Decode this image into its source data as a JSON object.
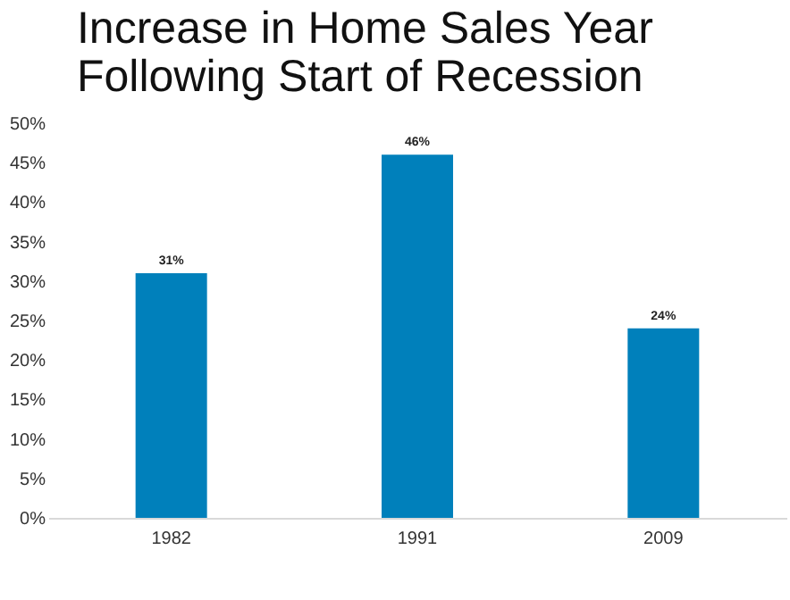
{
  "chart_data": {
    "type": "bar",
    "title": "Increase in Home Sales Year\nFollowing Start of Recession",
    "categories": [
      "1982",
      "1991",
      "2009"
    ],
    "values": [
      31,
      46,
      24
    ],
    "color": "#0080bb",
    "value_labels": [
      "31%",
      "46%",
      "24%"
    ],
    "ylim": [
      0,
      50
    ],
    "yticks": [
      {
        "value": 0,
        "label": "0%"
      },
      {
        "value": 5,
        "label": "5%"
      },
      {
        "value": 10,
        "label": "10%"
      },
      {
        "value": 15,
        "label": "15%"
      },
      {
        "value": 20,
        "label": "20%"
      },
      {
        "value": 25,
        "label": "25%"
      },
      {
        "value": 30,
        "label": "30%"
      },
      {
        "value": 35,
        "label": "35%"
      },
      {
        "value": 40,
        "label": "40%"
      },
      {
        "value": 45,
        "label": "45%"
      },
      {
        "value": 50,
        "label": "50%"
      }
    ],
    "grid": false
  }
}
